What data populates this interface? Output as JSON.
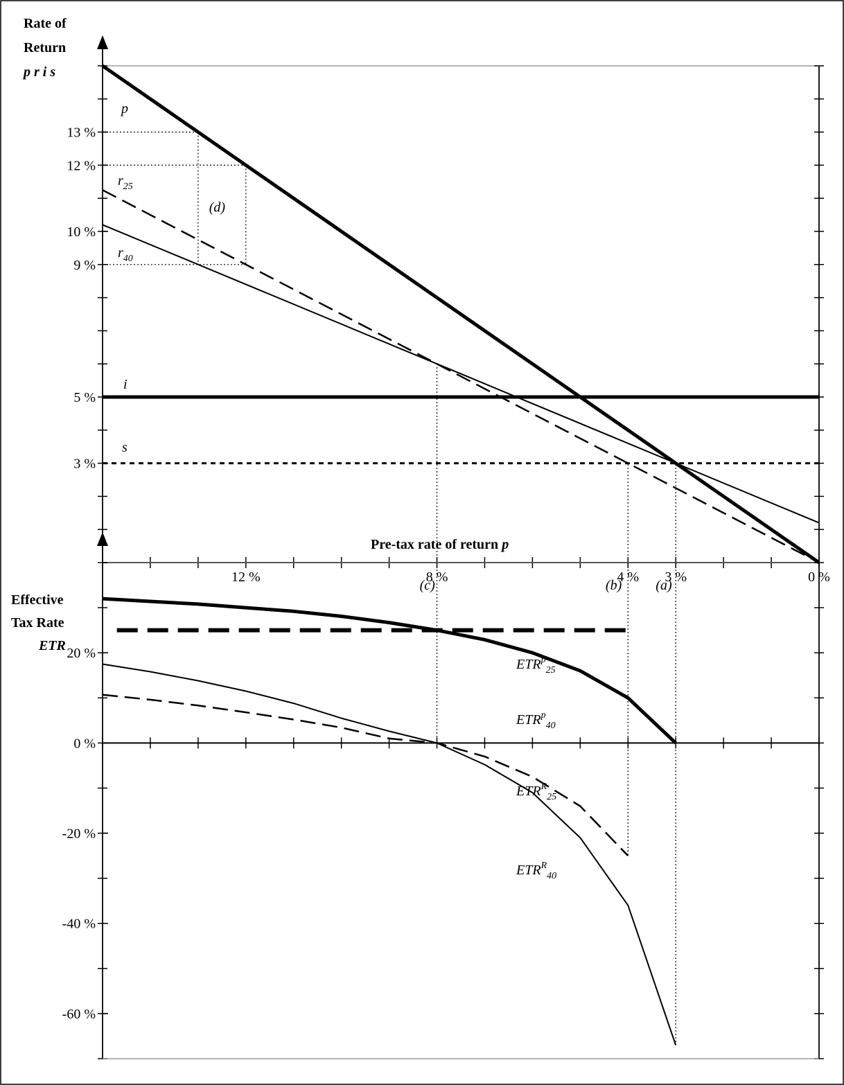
{
  "chart_data": [
    {
      "type": "line",
      "panel": "top",
      "ylabel_lines": [
        "Rate of",
        "Return"
      ],
      "ylabel_vars": "p r i s",
      "xlabel_text": "Pre-tax rate of return ",
      "xlabel_var": "p",
      "x_reversed": true,
      "xlim": [
        0,
        15
      ],
      "ylim": [
        0,
        15
      ],
      "x_tick_labels": [
        {
          "x": 12,
          "label": "12 %"
        },
        {
          "x": 8,
          "label": "8 %"
        },
        {
          "x": 4,
          "label": "4 %"
        },
        {
          "x": 3,
          "label": "3 %"
        },
        {
          "x": 0,
          "label": "0 %"
        }
      ],
      "y_tick_labels": [
        {
          "y": 13,
          "label": "13 %"
        },
        {
          "y": 12,
          "label": "12 %"
        },
        {
          "y": 10,
          "label": "10 %"
        },
        {
          "y": 9,
          "label": "9 %"
        },
        {
          "y": 5,
          "label": "5 %"
        },
        {
          "y": 3,
          "label": "3 %"
        }
      ],
      "series": [
        {
          "name": "p",
          "style": "thick",
          "x": [
            15,
            0
          ],
          "y": [
            15,
            0
          ]
        },
        {
          "name": "r",
          "sub": "25",
          "style": "dashed",
          "x": [
            15,
            0
          ],
          "y": [
            11.25,
            0
          ]
        },
        {
          "name": "r",
          "sub": "40",
          "style": "thin",
          "x": [
            15,
            0
          ],
          "y": [
            10.2,
            1.2
          ]
        },
        {
          "name": "i",
          "style": "thick",
          "x": [
            15,
            0
          ],
          "y": [
            5,
            5
          ]
        },
        {
          "name": "s",
          "style": "dotted",
          "x": [
            15,
            0
          ],
          "y": [
            3,
            3
          ]
        }
      ],
      "guides": [
        {
          "x1": 15,
          "y1": 13,
          "x2": 13,
          "y2": 13
        },
        {
          "x1": 15,
          "y1": 12,
          "x2": 12,
          "y2": 12
        },
        {
          "x1": 15,
          "y1": 9,
          "x2": 12,
          "y2": 9
        },
        {
          "x1": 13,
          "y1": 13,
          "x2": 13,
          "y2": 9
        },
        {
          "x1": 12,
          "y1": 12,
          "x2": 12,
          "y2": 9
        },
        {
          "x1": 8,
          "y1": 0,
          "x2": 8,
          "y2": 6
        },
        {
          "x1": 4,
          "y1": 0,
          "x2": 4,
          "y2": 3
        },
        {
          "x1": 3,
          "y1": 0,
          "x2": 3,
          "y2": 3
        }
      ],
      "annotations": [
        {
          "text": "(d)",
          "x": 12.6,
          "y": 10.6
        }
      ]
    },
    {
      "type": "line",
      "panel": "bottom",
      "ylabel_lines": [
        "Effective",
        "Tax Rate"
      ],
      "ylabel_var": "ETR",
      "x_reversed": true,
      "xlim": [
        0,
        15
      ],
      "ylim": [
        -70,
        40
      ],
      "y_tick_labels": [
        {
          "y": 20,
          "label": "20 %"
        },
        {
          "y": 0,
          "label": "0 %"
        },
        {
          "y": -20,
          "label": "-20 %"
        },
        {
          "y": -40,
          "label": "-40 %"
        },
        {
          "y": -60,
          "label": "-60 %"
        }
      ],
      "series": [
        {
          "name": "ETR",
          "sup": "p",
          "sub": "25",
          "style": "thick-dashed",
          "x": [
            14.7,
            4
          ],
          "y": [
            25,
            25
          ]
        },
        {
          "name": "ETR",
          "sup": "p",
          "sub": "40",
          "style": "thick",
          "x": [
            15,
            14,
            13,
            12,
            11,
            10,
            9,
            8,
            7,
            6,
            5,
            4,
            3
          ],
          "y": [
            32,
            31.4,
            30.8,
            30,
            29.2,
            28.1,
            26.7,
            25,
            22.9,
            20,
            16,
            10,
            0
          ]
        },
        {
          "name": "ETR",
          "sup": "R",
          "sub": "25",
          "style": "dashed",
          "x": [
            15,
            14,
            13,
            12,
            11,
            10,
            9,
            8,
            7,
            6,
            5,
            4
          ],
          "y": [
            10.7,
            9.6,
            8.3,
            6.8,
            5.2,
            3.4,
            1,
            0,
            -3,
            -7.5,
            -14,
            -25
          ]
        },
        {
          "name": "ETR",
          "sup": "R",
          "sub": "40",
          "style": "thin",
          "x": [
            15,
            14,
            13,
            12,
            11,
            10,
            9,
            8,
            7,
            6,
            5,
            4,
            3
          ],
          "y": [
            17.5,
            15.8,
            13.8,
            11.5,
            8.8,
            5.5,
            2.6,
            0,
            -4.8,
            -11,
            -21,
            -36,
            -67
          ]
        }
      ],
      "guides": [
        {
          "x1": 8,
          "y1": 40,
          "x2": 8,
          "y2": 0
        },
        {
          "x1": 4,
          "y1": 40,
          "x2": 4,
          "y2": -25
        },
        {
          "x1": 3,
          "y1": 40,
          "x2": 3,
          "y2": -67
        }
      ],
      "annotations": [
        {
          "text": "(c)",
          "x": 8.2,
          "y": 34
        },
        {
          "text": "(b)",
          "x": 4.3,
          "y": 34
        },
        {
          "text": "(a)",
          "x": 3.25,
          "y": 34
        }
      ]
    }
  ]
}
